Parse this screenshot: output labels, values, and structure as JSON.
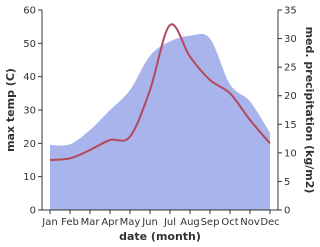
{
  "chart_data": {
    "type": "line-area-dual",
    "x_label": "date (month)",
    "y_label": "max temp (C)",
    "y2_label": "med. precipitation (kg/m2)",
    "categories": [
      "Jan",
      "Feb",
      "Mar",
      "Apr",
      "May",
      "Jun",
      "Jul",
      "Aug",
      "Sep",
      "Oct",
      "Nov",
      "Dec"
    ],
    "series": [
      {
        "name": "max temp",
        "color": "#b5495b",
        "values": [
          15,
          15.5,
          18,
          21,
          22,
          36,
          55.5,
          46,
          39,
          35,
          27,
          20
        ]
      },
      {
        "name": "precipitation",
        "color": "#a9b3ec",
        "axis": "y2",
        "values": [
          11.4,
          11.5,
          14,
          17.5,
          21,
          27,
          29.5,
          30.5,
          30,
          22,
          19,
          13.5
        ]
      }
    ],
    "ylim": [
      0,
      60
    ],
    "yticks": [
      0,
      10,
      20,
      30,
      40,
      50,
      60
    ],
    "y2lim": [
      0,
      35
    ],
    "y2ticks": [
      0,
      5,
      10,
      15,
      20,
      25,
      30,
      35
    ]
  }
}
